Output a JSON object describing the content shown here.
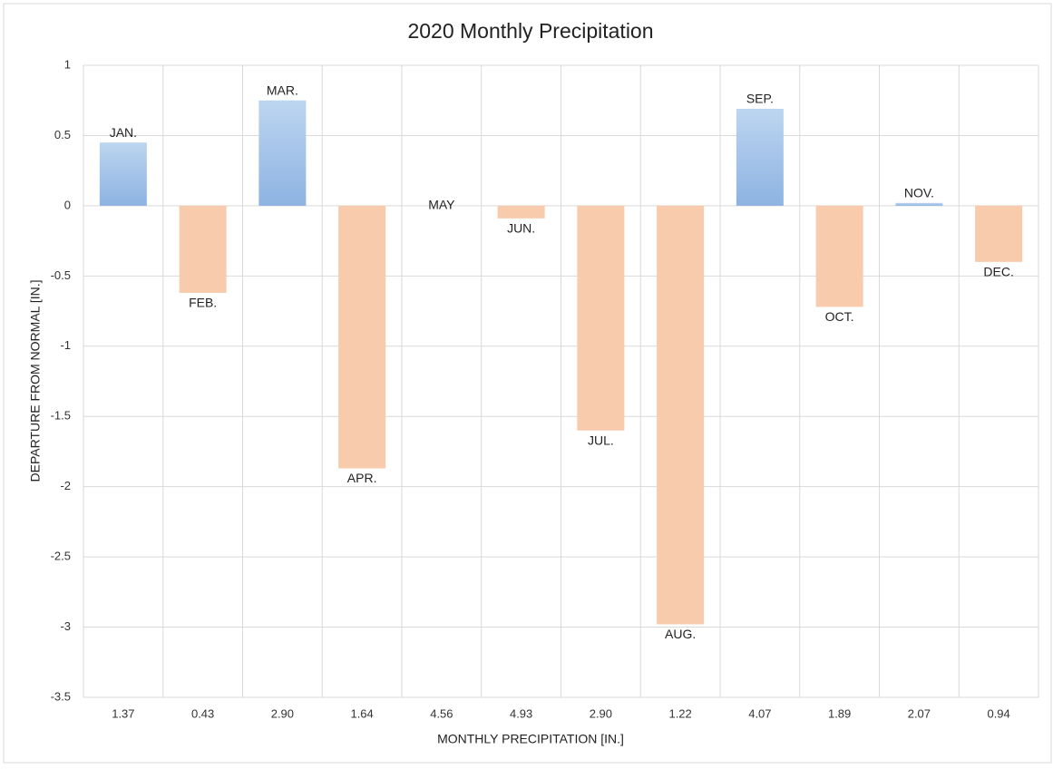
{
  "chart_data": {
    "type": "bar",
    "title": "2020 Monthly  Precipitation",
    "x_label": "MONTHLY PRECIPITATION [IN.]",
    "y_label": "DEPARTURE FROM NORMAL [IN.]",
    "categories": [
      "1.37",
      "0.43",
      "2.90",
      "1.64",
      "4.56",
      "4.93",
      "2.90",
      "1.22",
      "4.07",
      "1.89",
      "2.07",
      "0.94"
    ],
    "values": [
      0.45,
      -0.62,
      0.75,
      -1.87,
      0,
      -0.09,
      -1.6,
      -2.98,
      0.69,
      -0.72,
      0.02,
      -0.4
    ],
    "point_labels": [
      "JAN.",
      "FEB.",
      "MAR.",
      "APR.",
      "MAY",
      "JUN.",
      "JUL.",
      "AUG.",
      "SEP.",
      "OCT.",
      "NOV.",
      "DEC."
    ],
    "positive_colors": [
      "#bdd5f0",
      "#8db3e2"
    ],
    "negative_color": "#f8cbad",
    "ylim": [
      -3.5,
      1
    ],
    "yticks": [
      -3.5,
      -3,
      -2.5,
      -2,
      -1.5,
      -1,
      -0.5,
      0,
      0.5,
      1
    ],
    "grid": true
  }
}
